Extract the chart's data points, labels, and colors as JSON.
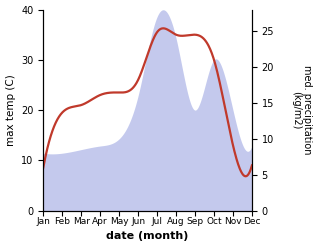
{
  "months": [
    "Jan",
    "Feb",
    "Mar",
    "Apr",
    "May",
    "Jun",
    "Jul",
    "Aug",
    "Sep",
    "Oct",
    "Nov",
    "Dec"
  ],
  "max_temp": [
    8.5,
    19.5,
    21.0,
    23.0,
    23.5,
    26.0,
    35.5,
    35.0,
    35.0,
    30.0,
    13.0,
    9.0
  ],
  "precipitation": [
    8,
    8,
    8.5,
    9,
    10,
    16,
    27,
    24,
    14,
    21,
    14,
    9
  ],
  "temp_color": "#c0392b",
  "precip_fill_color": "#b0b8e8",
  "bg_color": "#ffffff",
  "xlabel": "date (month)",
  "ylabel_left": "max temp (C)",
  "ylabel_right": "med. precipitation\n(kg/m2)",
  "ylim_left": [
    0,
    40
  ],
  "ylim_right": [
    0,
    28
  ],
  "yticks_left": [
    0,
    10,
    20,
    30,
    40
  ],
  "yticks_right": [
    0,
    5,
    10,
    15,
    20,
    25
  ]
}
